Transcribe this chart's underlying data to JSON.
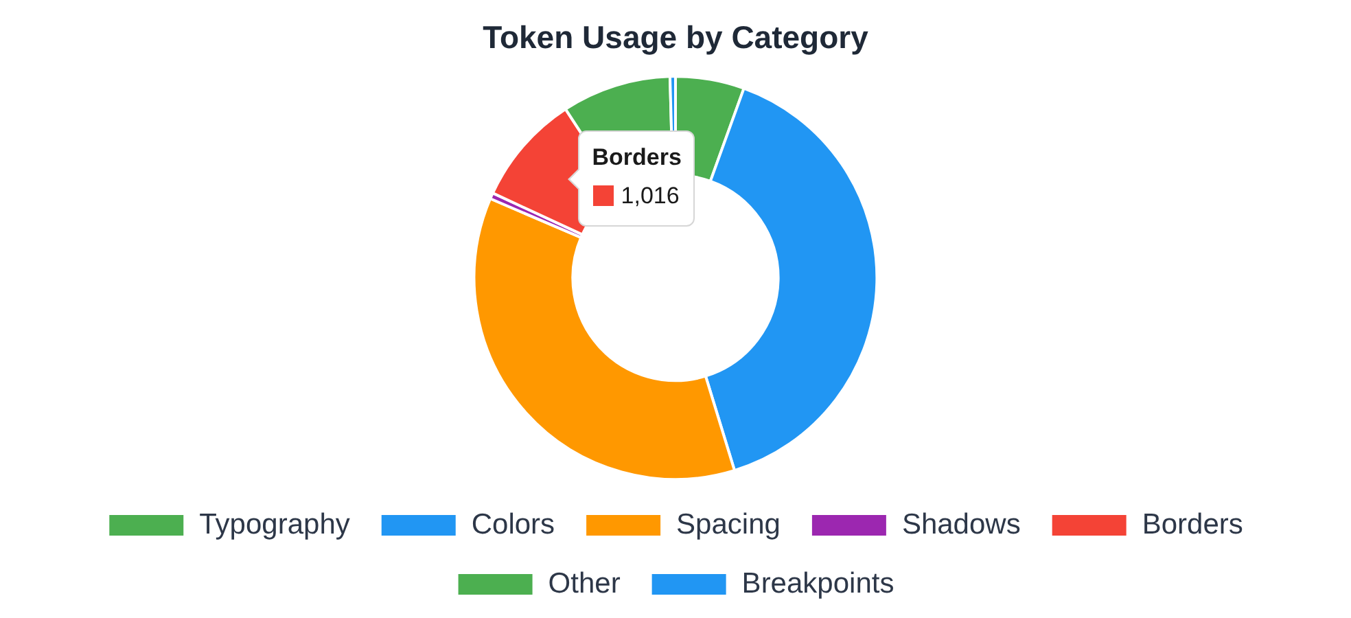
{
  "chart_data": {
    "type": "donut",
    "title": "Token Usage by Category",
    "categories": [
      "Typography",
      "Colors",
      "Spacing",
      "Shadows",
      "Borders",
      "Other",
      "Breakpoints"
    ],
    "values": [
      630,
      4540,
      4130,
      55,
      1016,
      1000,
      50
    ],
    "colors": [
      "#4caf50",
      "#2196f3",
      "#ff9800",
      "#9c27b0",
      "#f44336",
      "#4caf50",
      "#2196f3"
    ],
    "value_labels": [
      null,
      null,
      null,
      null,
      "1,016",
      null,
      null
    ],
    "legend": "bottom"
  }
}
